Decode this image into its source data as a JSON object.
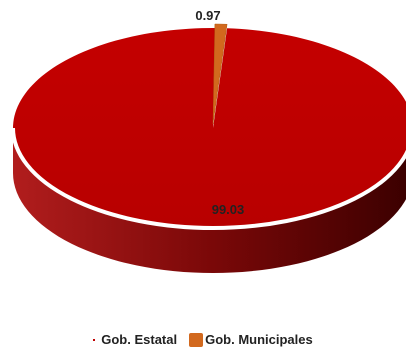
{
  "chart_data": {
    "type": "pie",
    "style": "3d",
    "series": [
      {
        "name": "Gob. Estatal",
        "value": 99.03,
        "color": "#c00000"
      },
      {
        "name": "Gob. Municipales",
        "value": 0.97,
        "color": "#d2691e"
      }
    ],
    "data_labels": [
      "99.03",
      "0.97"
    ],
    "legend": "bottom"
  }
}
